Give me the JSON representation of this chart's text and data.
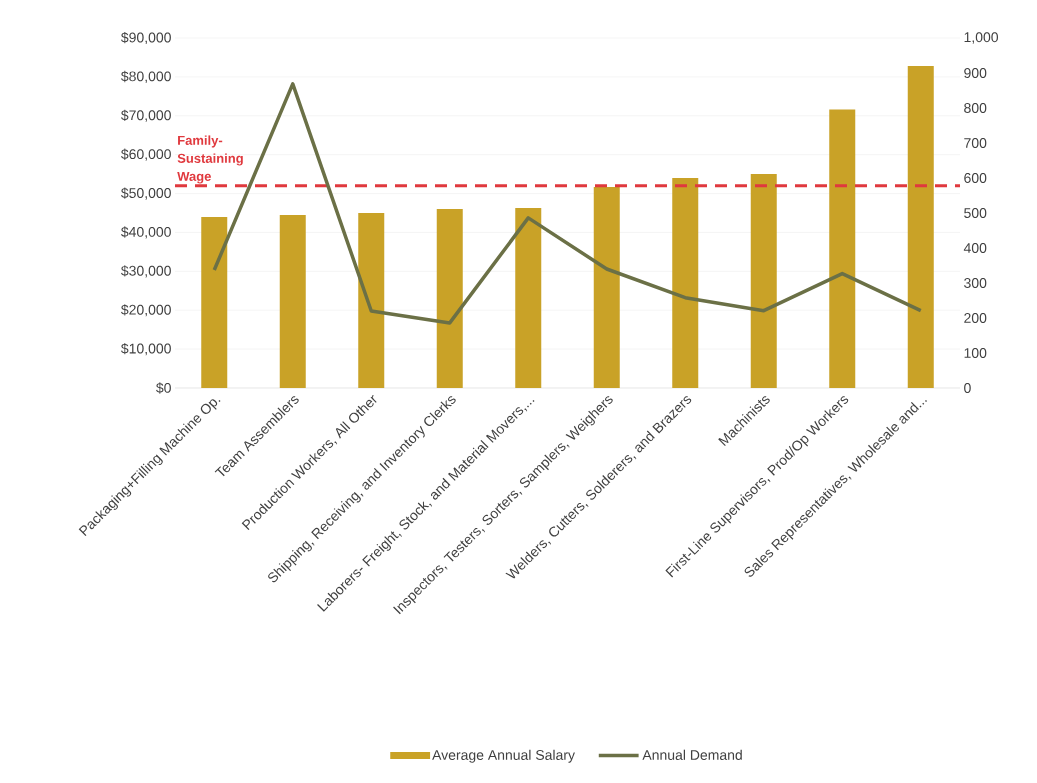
{
  "chart_data": {
    "type": "bar",
    "categories": [
      "Packaging+Filling Machine Op.",
      "Team Assemblers",
      "Production Workers, All Other",
      "Shipping, Receiving, and Inventory Clerks",
      "Laborers- Freight, Stock, and Material Movers,...",
      "Inspectors, Testers, Sorters, Samplers, Weighers",
      "Welders, Cutters, Solderers, and Brazers",
      "Machinists",
      "First-Line Supervisors, Prod/Op Workers",
      "Sales Representatives, Wholesale and..."
    ],
    "series": [
      {
        "name": "Average Annual Salary",
        "color": "#c9a227",
        "values": [
          44000,
          44500,
          45000,
          46000,
          46300,
          51700,
          54000,
          55000,
          71600,
          82800
        ]
      },
      {
        "name": "Annual Demand",
        "type": "line",
        "axis": "y2",
        "color": "#6b7046",
        "values": [
          337,
          869,
          220,
          186,
          486,
          340,
          258,
          221,
          327,
          221
        ]
      }
    ],
    "ylim": [
      0,
      90000
    ],
    "yticks": [
      {
        "value": 0,
        "label": "$0"
      },
      {
        "value": 10000,
        "label": "$10,000"
      },
      {
        "value": 20000,
        "label": "$20,000"
      },
      {
        "value": 30000,
        "label": "$30,000"
      },
      {
        "value": 40000,
        "label": "$40,000"
      },
      {
        "value": 50000,
        "label": "$50,000"
      },
      {
        "value": 60000,
        "label": "$60,000"
      },
      {
        "value": 70000,
        "label": "$70,000"
      },
      {
        "value": 80000,
        "label": "$80,000"
      },
      {
        "value": 90000,
        "label": "$90,000"
      }
    ],
    "y2lim": [
      0,
      1000
    ],
    "y2ticks": [
      0,
      100,
      200,
      300,
      400,
      500,
      600,
      700,
      800,
      900,
      {
        "value": 1000,
        "label": "1,000"
      }
    ],
    "ref_lines": [
      {
        "axis": "y",
        "value": 52000,
        "label": "Family-Sustaining Wage",
        "color": "#e0393e",
        "line_style": "dashed"
      }
    ],
    "grid": "y",
    "legend": "bottom",
    "marker": "none",
    "line_style": "solid"
  }
}
